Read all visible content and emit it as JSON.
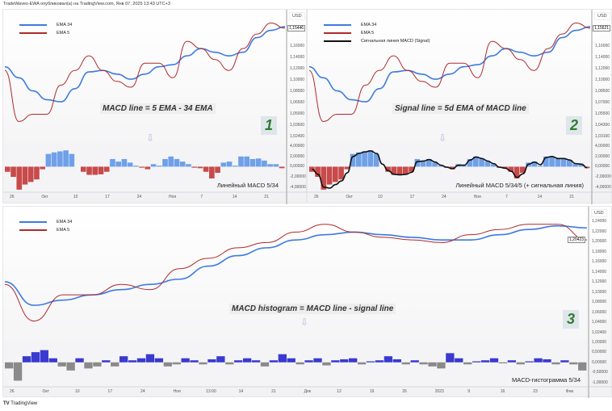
{
  "header": {
    "text": "TradeWaves-EWA опубликовал(а) на TradingView.com, Янв 07, 2025 13:43 UTC+3"
  },
  "footer": {
    "brand": "TradingView"
  },
  "colors": {
    "ema34": "#3d7be0",
    "ema5": "#b02a2a",
    "signal": "#111111",
    "pos": "#6fa0e8",
    "neg": "#c84a4a",
    "hist_pos": "#3a3ad0",
    "hist_neg": "#8a8a8a"
  },
  "chart_data": [
    {
      "type": "line",
      "currency": "USD",
      "last_price": "1,15446",
      "legend": [
        "EMA 34",
        "EMA 5"
      ],
      "formula": "MACD line = 5 EMA - 34 EMA",
      "number": "1",
      "price_ticks": [
        "1,16000",
        "1,14000",
        "1,12000",
        "1,10000",
        "1,08000",
        "1,06500",
        "1,05000",
        "1,03600",
        "1,02400"
      ],
      "price_tick_values": [
        1.16,
        1.14,
        1.12,
        1.1,
        1.08,
        1.065,
        1.05,
        1.036,
        1.024
      ],
      "ylim": [
        1.024,
        1.19
      ],
      "series": [
        {
          "name": "EMA 34",
          "values": [
            1.125,
            1.11,
            1.092,
            1.08,
            1.077,
            1.095,
            1.118,
            1.12,
            1.115,
            1.108,
            1.115,
            1.125,
            1.128,
            1.14,
            1.15,
            1.145,
            1.14,
            1.145,
            1.165,
            1.175,
            1.18
          ]
        },
        {
          "name": "EMA 5",
          "values": [
            1.12,
            1.05,
            1.06,
            1.06,
            1.1,
            1.12,
            1.14,
            1.12,
            1.105,
            1.097,
            1.13,
            1.13,
            1.11,
            1.16,
            1.15,
            1.135,
            1.12,
            1.15,
            1.17,
            1.185,
            1.178
          ]
        }
      ],
      "macd": {
        "title": "Линейный MACD 5/34",
        "ticks": [
          "4,00000",
          "2,00000",
          "0,00000",
          "-2,00000",
          "-4,00000"
        ],
        "tick_values": [
          4,
          2,
          0,
          -2,
          -4
        ],
        "ylim": [
          -5,
          4.5
        ],
        "values": [
          -1,
          -2,
          -4.5,
          -3.5,
          -3,
          -2.5,
          -0.5,
          2.5,
          2.8,
          3,
          3.2,
          2.5,
          0,
          -1,
          -1.6,
          -1.6,
          -1.5,
          -1,
          1.5,
          1,
          1.5,
          0.8,
          0.2,
          -0.2,
          -0.5,
          0.5,
          0.2,
          1.5,
          2,
          1.5,
          1,
          0.5,
          -0.2,
          -0.3,
          -1,
          -2.3,
          -1.2,
          0.8,
          1,
          0.2,
          2,
          2,
          1.5,
          1.6,
          1.2,
          0.5,
          0.5,
          -0.3
        ]
      },
      "x_ticks": [
        "26",
        "Окт",
        "10",
        "17",
        "24",
        "Ноя",
        "7",
        "14",
        "21"
      ]
    },
    {
      "type": "line",
      "currency": "USD",
      "last_price": "1,15621",
      "legend": [
        "EMA 34",
        "EMA 5",
        "Сигнальная линия MACD (Signal)"
      ],
      "formula": "Signal line = 5d EMA of MACD line",
      "number": "2",
      "price_ticks": [
        "1,16000",
        "1,14000",
        "1,12000",
        "1,10000",
        "1,08500",
        "1,07000",
        "1,05500",
        "1,04300",
        "1,03100"
      ],
      "price_tick_values": [
        1.16,
        1.14,
        1.12,
        1.1,
        1.085,
        1.07,
        1.055,
        1.043,
        1.031
      ],
      "ylim": [
        1.024,
        1.19
      ],
      "series": [
        {
          "name": "EMA 34",
          "values": [
            1.125,
            1.11,
            1.092,
            1.08,
            1.077,
            1.095,
            1.118,
            1.12,
            1.115,
            1.108,
            1.115,
            1.125,
            1.128,
            1.14,
            1.15,
            1.145,
            1.14,
            1.145,
            1.165,
            1.175,
            1.18
          ]
        },
        {
          "name": "EMA 5",
          "values": [
            1.12,
            1.05,
            1.06,
            1.06,
            1.1,
            1.12,
            1.14,
            1.12,
            1.105,
            1.097,
            1.13,
            1.13,
            1.11,
            1.16,
            1.15,
            1.135,
            1.12,
            1.15,
            1.17,
            1.185,
            1.178
          ]
        }
      ],
      "macd": {
        "title": "Линейный MACD 5/34/5 (+ сигнальная линия)",
        "ticks": [
          "4,00000",
          "2,00000",
          "0,00000",
          "-2,00000",
          "-4,00000"
        ],
        "tick_values": [
          4,
          2,
          0,
          -2,
          -4
        ],
        "ylim": [
          -5,
          4.5
        ],
        "values": [
          -1,
          -2,
          -4.5,
          -3.5,
          -3,
          -2.5,
          -0.5,
          2.5,
          2.8,
          3,
          3.2,
          2.5,
          0,
          -1,
          -1.6,
          -1.6,
          -1.5,
          -1,
          1.5,
          1,
          1.5,
          0.8,
          0.2,
          -0.2,
          -0.5,
          0.5,
          0.2,
          1.5,
          2,
          1.5,
          1,
          0.5,
          -0.2,
          -0.3,
          -1,
          -2.3,
          -1.2,
          0.8,
          1,
          0.2,
          2,
          2,
          1.5,
          1.6,
          1.2,
          0.5,
          0.5,
          -0.3
        ],
        "signal": [
          -0.5,
          -1.5,
          -4,
          -4.2,
          -3.5,
          -2.8,
          -1.2,
          2,
          2.6,
          2.9,
          3.1,
          2.6,
          0.5,
          -0.8,
          -1.5,
          -1.6,
          -1.5,
          -1.1,
          1,
          1.1,
          1.4,
          0.9,
          0.3,
          -0.1,
          -0.4,
          0.3,
          0.3,
          1.3,
          1.9,
          1.6,
          1.1,
          0.6,
          -0.1,
          -0.3,
          -0.9,
          -2.1,
          -1.4,
          0.5,
          0.9,
          0.4,
          1.8,
          2,
          1.6,
          1.6,
          1.3,
          0.6,
          0.5,
          -0.2
        ]
      },
      "x_ticks": [
        "26",
        "Окт",
        "10",
        "17",
        "24",
        "Ноя",
        "7",
        "14",
        "21"
      ]
    },
    {
      "type": "line",
      "currency": "USD",
      "last_price": "1,20423",
      "legend": [
        "EMA 34",
        "EMA 5"
      ],
      "formula": "MACD histogram = MACD line - signal line",
      "number": "3",
      "price_ticks": [
        "1,24000",
        "1,22000",
        "1,20000",
        "1,18000",
        "1,16000",
        "1,14000",
        "1,12000",
        "1,10000",
        "1,08000",
        "1,06000",
        "1,04000",
        "1,02400"
      ],
      "price_tick_values": [
        1.24,
        1.22,
        1.2,
        1.18,
        1.16,
        1.14,
        1.12,
        1.1,
        1.08,
        1.06,
        1.04,
        1.024
      ],
      "ylim": [
        1.02,
        1.25
      ],
      "series": [
        {
          "name": "EMA 34",
          "values": [
            1.125,
            1.08,
            1.09,
            1.1,
            1.11,
            1.12,
            1.13,
            1.155,
            1.175,
            1.19,
            1.205,
            1.215,
            1.22,
            1.215,
            1.21,
            1.205,
            1.205,
            1.215,
            1.225,
            1.232,
            1.228
          ]
        },
        {
          "name": "EMA 5",
          "values": [
            1.12,
            1.05,
            1.1,
            1.1,
            1.12,
            1.11,
            1.15,
            1.17,
            1.19,
            1.2,
            1.22,
            1.235,
            1.22,
            1.21,
            1.205,
            1.2,
            1.215,
            1.225,
            1.235,
            1.235,
            1.205
          ]
        }
      ],
      "macd": {
        "title": "MACD-гистограмма 5/34",
        "ticks": [
          "1,00000",
          "0,50000",
          "0,00000",
          "-0,50000",
          "-1,00000"
        ],
        "tick_values": [
          1,
          0.5,
          0,
          -0.5,
          -1
        ],
        "ylim": [
          -1.2,
          1.1
        ],
        "values": [
          -0.3,
          -0.9,
          0.3,
          0.5,
          0.6,
          0.2,
          -0.2,
          -0.4,
          0.2,
          -0.3,
          -0.2,
          0.1,
          -0.2,
          0.3,
          0.1,
          0.2,
          0.4,
          0.2,
          -0.2,
          -0.1,
          0.2,
          0.1,
          -0.1,
          0.15,
          0.3,
          -0.1,
          0.1,
          0.2,
          0.1,
          -0.2,
          0.1,
          0.4,
          0.2,
          -0.1,
          0.1,
          0.2,
          -0.15,
          0.1,
          0.15,
          0.2,
          -0.1,
          0.05,
          0.1,
          0.3,
          0.15,
          -0.1,
          0.1,
          -0.1,
          -0.2,
          -0.3,
          0.45,
          0.2,
          -0.1,
          0.05,
          0.1,
          0.2,
          -0.05,
          0.1,
          -0.1,
          0.05,
          0.2,
          0.15,
          -0.1,
          0.1,
          -0.1,
          -0.4
        ]
      },
      "x_ticks": [
        "26",
        "Окт",
        "10",
        "17",
        "24",
        "Ноя",
        "13:00",
        "14",
        "21",
        "Дек",
        "12",
        "19",
        "26",
        "2023",
        "9",
        "16",
        "23",
        "Фев"
      ]
    }
  ]
}
